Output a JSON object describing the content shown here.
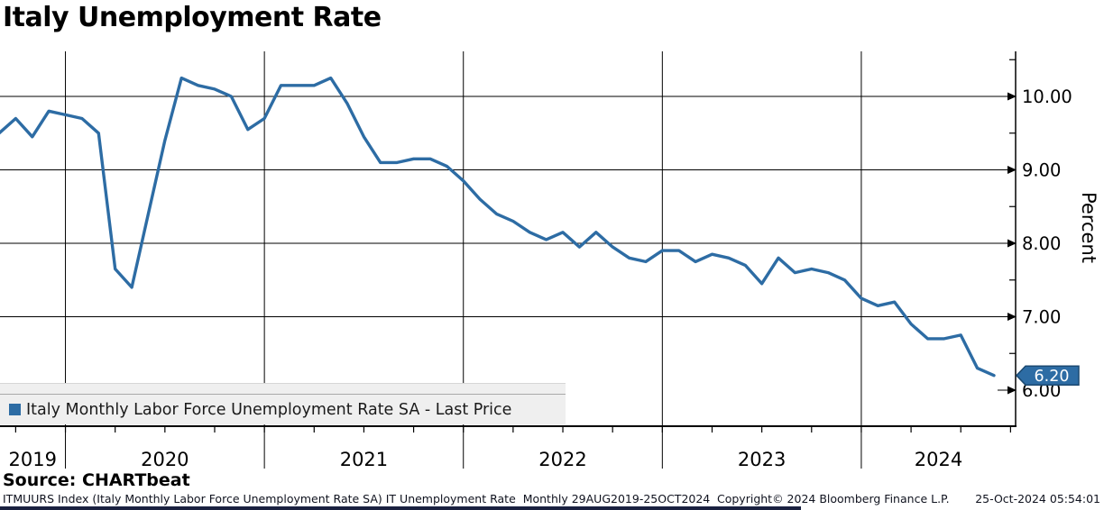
{
  "title": "Italy Unemployment Rate",
  "source_label": "Source: CHARTbeat",
  "legend": {
    "swatch_color": "#2d6ca4",
    "label": "Italy Monthly Labor Force Unemployment Rate SA - Last Price"
  },
  "last_price_badge": {
    "value": "6.20",
    "fill": "#2d6ca4",
    "border": "#1b4971",
    "text_color": "#ffffff"
  },
  "footer": {
    "left": "ITMUURS Index (Italy Monthly Labor Force Unemployment Rate SA) IT Unemployment Rate  Monthly 29AUG2019-25OCT2024",
    "copyright": "Copyright© 2024 Bloomberg Finance L.P.",
    "timestamp": "25-Oct-2024 05:54:01"
  },
  "chart_data": {
    "type": "line",
    "title": "Italy Unemployment Rate",
    "ylabel": "Percent",
    "periodicity": "Monthly",
    "date_range": "29AUG2019-25OCT2024",
    "grid": "horizontal major gridlines with right-pointing arrowheads; vertical lines at year boundaries; quarterly minor ticks on x-axis; 0.5 minor ticks on right y-axis",
    "ylim": [
      5.5,
      10.6
    ],
    "y_axis": {
      "side": "right",
      "ticks": [
        6,
        7,
        8,
        9,
        10
      ],
      "tick_labels": [
        "6.00",
        "7.00",
        "8.00",
        "9.00",
        "10.00"
      ],
      "minor_tick_step": 0.5
    },
    "x_axis": {
      "year_labels": [
        "2019",
        "2020",
        "2021",
        "2022",
        "2023",
        "2024"
      ],
      "minor_tick": "quarterly"
    },
    "series": [
      {
        "name": "Italy Monthly Labor Force Unemployment Rate SA - Last Price",
        "color": "#2d6ca4",
        "last_price": 6.2,
        "x": [
          "2019-08",
          "2019-09",
          "2019-10",
          "2019-11",
          "2019-12",
          "2020-01",
          "2020-02",
          "2020-03",
          "2020-04",
          "2020-05",
          "2020-06",
          "2020-07",
          "2020-08",
          "2020-09",
          "2020-10",
          "2020-11",
          "2020-12",
          "2021-01",
          "2021-02",
          "2021-03",
          "2021-04",
          "2021-05",
          "2021-06",
          "2021-07",
          "2021-08",
          "2021-09",
          "2021-10",
          "2021-11",
          "2021-12",
          "2022-01",
          "2022-02",
          "2022-03",
          "2022-04",
          "2022-05",
          "2022-06",
          "2022-07",
          "2022-08",
          "2022-09",
          "2022-10",
          "2022-11",
          "2022-12",
          "2023-01",
          "2023-02",
          "2023-03",
          "2023-04",
          "2023-05",
          "2023-06",
          "2023-07",
          "2023-08",
          "2023-09",
          "2023-10",
          "2023-11",
          "2023-12",
          "2024-01",
          "2024-02",
          "2024-03",
          "2024-04",
          "2024-05",
          "2024-06",
          "2024-07",
          "2024-08"
        ],
        "values": [
          9.5,
          9.7,
          9.45,
          9.8,
          9.75,
          9.7,
          9.5,
          7.65,
          7.4,
          8.4,
          9.4,
          10.25,
          10.15,
          10.1,
          10.0,
          9.55,
          9.7,
          10.15,
          10.15,
          10.15,
          10.25,
          9.9,
          9.45,
          9.1,
          9.1,
          9.15,
          9.15,
          9.05,
          8.85,
          8.6,
          8.4,
          8.3,
          8.15,
          8.05,
          8.15,
          7.95,
          8.15,
          7.95,
          7.8,
          7.75,
          7.9,
          7.9,
          7.75,
          7.85,
          7.8,
          7.7,
          7.45,
          7.8,
          7.6,
          7.65,
          7.6,
          7.5,
          7.25,
          7.15,
          7.2,
          6.9,
          6.7,
          6.7,
          6.75,
          6.3,
          6.2
        ]
      }
    ]
  }
}
